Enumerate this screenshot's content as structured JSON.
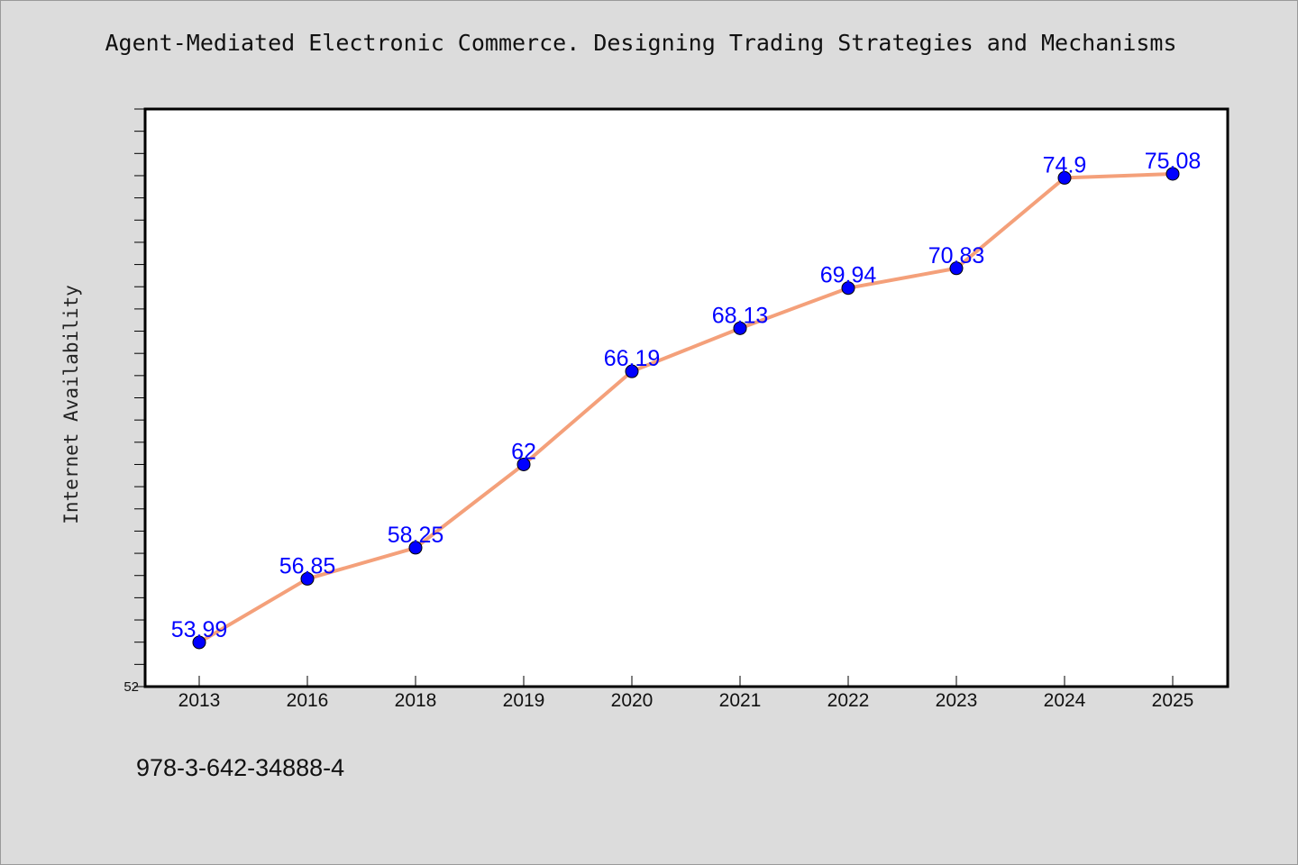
{
  "title": "Agent-Mediated Electronic Commerce. Designing Trading Strategies and Mechanisms",
  "footer_code": "978-3-642-34888-4",
  "chart_data": {
    "type": "line",
    "title": "Agent-Mediated Electronic Commerce. Designing Trading Strategies and Mechanisms",
    "xlabel": "",
    "ylabel": "Internet Availability",
    "categories": [
      "2013",
      "2016",
      "2018",
      "2019",
      "2020",
      "2021",
      "2022",
      "2023",
      "2024",
      "2025"
    ],
    "values": [
      53.99,
      56.85,
      58.25,
      62,
      66.19,
      68.13,
      69.94,
      70.83,
      74.9,
      75.08
    ],
    "data_labels": [
      "53.99",
      "56.85",
      "58.25",
      "62",
      "66.19",
      "68.13",
      "69.94",
      "70.83",
      "74.9",
      "75.08"
    ],
    "ylim": [
      52,
      78
    ],
    "yticks_labeled": [
      "52"
    ],
    "grid": false,
    "legend": "none",
    "colors": {
      "line": "#f4a07a",
      "marker": "#0000ff",
      "label": "#0000ff",
      "background": "#dcdcdc",
      "plot_area": "#ffffff"
    }
  }
}
